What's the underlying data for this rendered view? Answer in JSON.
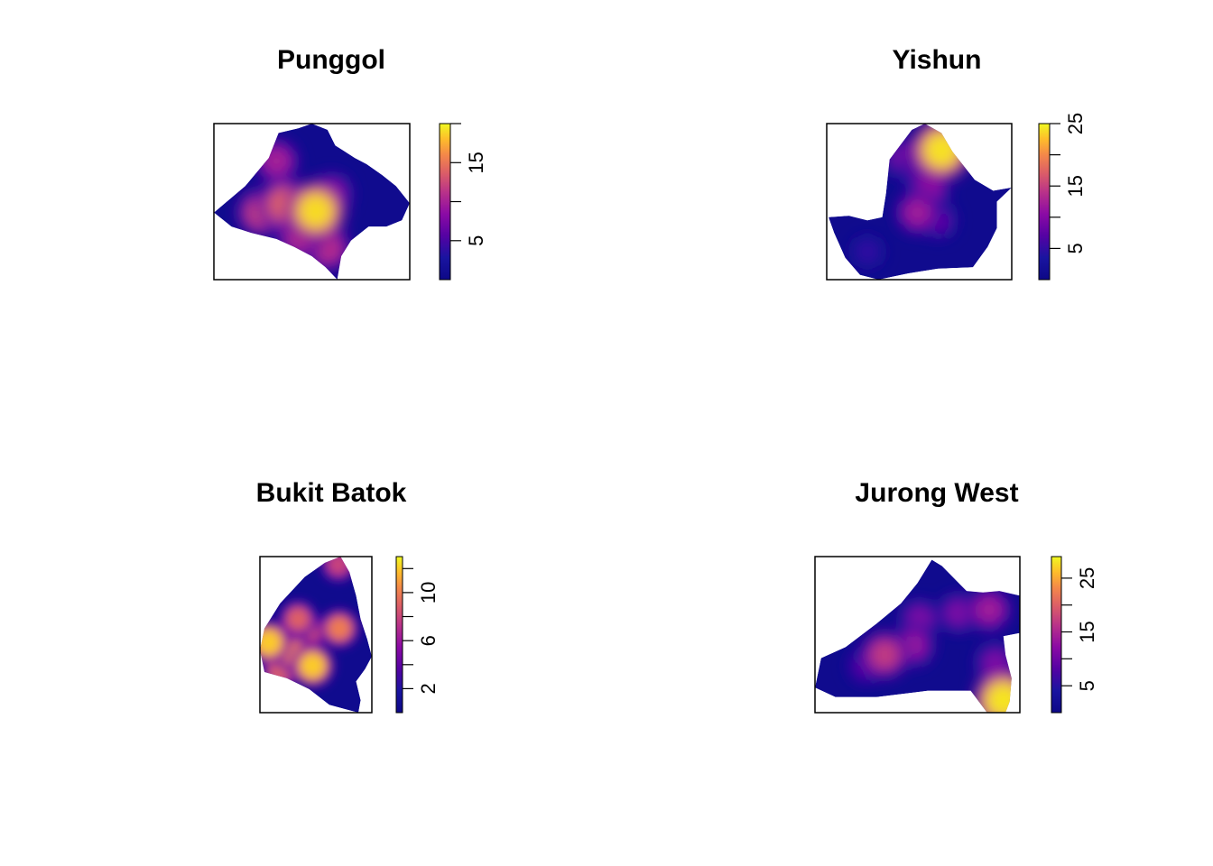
{
  "chart_data": [
    {
      "type": "heatmap",
      "title": "Punggol",
      "legend": {
        "min": 0,
        "max": 20,
        "ticks": [
          5,
          10,
          15,
          20
        ],
        "tick_labels": [
          "5",
          "",
          "15",
          ""
        ]
      },
      "hotspots": [
        {
          "x": 0.52,
          "y": 0.56,
          "value": 19
        },
        {
          "x": 0.36,
          "y": 0.52,
          "value": 14
        },
        {
          "x": 0.24,
          "y": 0.57,
          "value": 12
        },
        {
          "x": 0.32,
          "y": 0.24,
          "value": 10
        },
        {
          "x": 0.58,
          "y": 0.8,
          "value": 11
        },
        {
          "x": 0.44,
          "y": 0.72,
          "value": 11
        },
        {
          "x": 0.6,
          "y": 0.45,
          "value": 9
        }
      ]
    },
    {
      "type": "heatmap",
      "title": "Yishun",
      "legend": {
        "min": 0,
        "max": 25,
        "ticks": [
          5,
          10,
          15,
          20,
          25
        ],
        "tick_labels": [
          "5",
          "",
          "15",
          "",
          "25"
        ]
      },
      "hotspots": [
        {
          "x": 0.62,
          "y": 0.17,
          "value": 24
        },
        {
          "x": 0.55,
          "y": 0.42,
          "value": 11
        },
        {
          "x": 0.49,
          "y": 0.57,
          "value": 12
        },
        {
          "x": 0.41,
          "y": 0.22,
          "value": 9
        },
        {
          "x": 0.51,
          "y": 0.3,
          "value": 9
        },
        {
          "x": 0.6,
          "y": 0.62,
          "value": 8
        },
        {
          "x": 0.22,
          "y": 0.82,
          "value": 5
        }
      ]
    },
    {
      "type": "heatmap",
      "title": "Bukit Batok",
      "legend": {
        "min": 0,
        "max": 13,
        "ticks": [
          2,
          4,
          6,
          8,
          10,
          12
        ],
        "tick_labels": [
          "2",
          "",
          "6",
          "",
          "10",
          ""
        ]
      },
      "hotspots": [
        {
          "x": 0.47,
          "y": 0.7,
          "value": 12
        },
        {
          "x": 0.08,
          "y": 0.55,
          "value": 12
        },
        {
          "x": 0.3,
          "y": 0.62,
          "value": 10
        },
        {
          "x": 0.71,
          "y": 0.46,
          "value": 10
        },
        {
          "x": 0.34,
          "y": 0.4,
          "value": 9
        },
        {
          "x": 0.45,
          "y": 0.48,
          "value": 8
        },
        {
          "x": 0.7,
          "y": 0.05,
          "value": 8
        },
        {
          "x": 0.18,
          "y": 0.73,
          "value": 9
        }
      ]
    },
    {
      "type": "heatmap",
      "title": "Jurong West",
      "legend": {
        "min": 0,
        "max": 29,
        "ticks": [
          5,
          10,
          15,
          20,
          25
        ],
        "tick_labels": [
          "5",
          "",
          "15",
          "",
          "25"
        ]
      },
      "hotspots": [
        {
          "x": 0.92,
          "y": 0.92,
          "value": 28
        },
        {
          "x": 0.34,
          "y": 0.63,
          "value": 17
        },
        {
          "x": 0.85,
          "y": 0.34,
          "value": 14
        },
        {
          "x": 0.48,
          "y": 0.57,
          "value": 13
        },
        {
          "x": 0.51,
          "y": 0.4,
          "value": 11
        },
        {
          "x": 0.88,
          "y": 0.68,
          "value": 11
        },
        {
          "x": 0.7,
          "y": 0.36,
          "value": 11
        },
        {
          "x": 0.25,
          "y": 0.7,
          "value": 9
        }
      ]
    }
  ]
}
